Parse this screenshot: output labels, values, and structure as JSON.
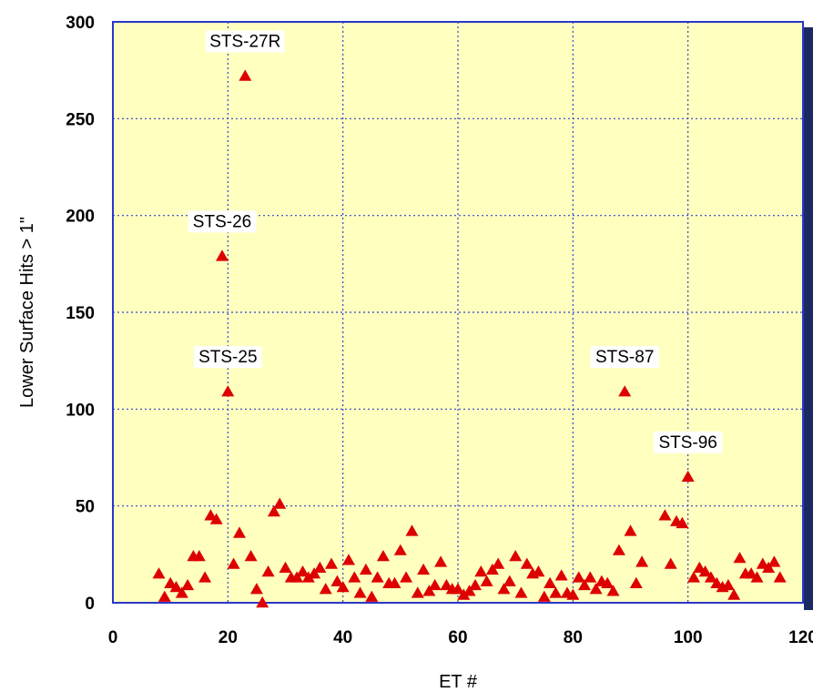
{
  "chart_data": {
    "type": "scatter",
    "xlabel": "ET #",
    "ylabel": "Lower Surface Hits > 1\"",
    "xlim": [
      0,
      120
    ],
    "ylim": [
      0,
      300
    ],
    "x_ticks": [
      "0",
      "20",
      "40",
      "60",
      "80",
      "100",
      "120"
    ],
    "y_ticks": [
      "0",
      "50",
      "100",
      "150",
      "200",
      "250",
      "300"
    ],
    "grid": true,
    "marker": "triangle",
    "colors": {
      "plot_background": "#ffffc0",
      "marker": "#dd0000",
      "grid": "#3344cc",
      "frame": "#2a38c8",
      "right_edge_strip": "#1b2a63"
    },
    "series": [
      {
        "points": [
          [
            8,
            15
          ],
          [
            9,
            3
          ],
          [
            10,
            10
          ],
          [
            11,
            8
          ],
          [
            12,
            5
          ],
          [
            13,
            9
          ],
          [
            14,
            24
          ],
          [
            15,
            24
          ],
          [
            16,
            13
          ],
          [
            17,
            45
          ],
          [
            18,
            43
          ],
          [
            19,
            179
          ],
          [
            20,
            109
          ],
          [
            21,
            20
          ],
          [
            22,
            36
          ],
          [
            23,
            272
          ],
          [
            24,
            24
          ],
          [
            25,
            7
          ],
          [
            26,
            0
          ],
          [
            27,
            16
          ],
          [
            28,
            47
          ],
          [
            29,
            51
          ],
          [
            30,
            18
          ],
          [
            31,
            13
          ],
          [
            32,
            13
          ],
          [
            33,
            16
          ],
          [
            34,
            13
          ],
          [
            35,
            15
          ],
          [
            36,
            18
          ],
          [
            37,
            7
          ],
          [
            38,
            20
          ],
          [
            39,
            11
          ],
          [
            40,
            8
          ],
          [
            41,
            22
          ],
          [
            42,
            13
          ],
          [
            43,
            5
          ],
          [
            44,
            17
          ],
          [
            45,
            3
          ],
          [
            46,
            13
          ],
          [
            47,
            24
          ],
          [
            48,
            10
          ],
          [
            49,
            10
          ],
          [
            50,
            27
          ],
          [
            51,
            13
          ],
          [
            52,
            37
          ],
          [
            53,
            5
          ],
          [
            54,
            17
          ],
          [
            55,
            6
          ],
          [
            56,
            9
          ],
          [
            57,
            21
          ],
          [
            58,
            9
          ],
          [
            59,
            7
          ],
          [
            60,
            7
          ],
          [
            61,
            4
          ],
          [
            62,
            6
          ],
          [
            63,
            9
          ],
          [
            64,
            16
          ],
          [
            65,
            11
          ],
          [
            66,
            17
          ],
          [
            67,
            20
          ],
          [
            68,
            7
          ],
          [
            69,
            11
          ],
          [
            70,
            24
          ],
          [
            71,
            5
          ],
          [
            72,
            20
          ],
          [
            73,
            15
          ],
          [
            74,
            16
          ],
          [
            75,
            3
          ],
          [
            76,
            10
          ],
          [
            77,
            5
          ],
          [
            78,
            14
          ],
          [
            79,
            5
          ],
          [
            80,
            4
          ],
          [
            81,
            13
          ],
          [
            82,
            9
          ],
          [
            83,
            13
          ],
          [
            84,
            7
          ],
          [
            85,
            11
          ],
          [
            86,
            10
          ],
          [
            87,
            6
          ],
          [
            88,
            27
          ],
          [
            89,
            109
          ],
          [
            90,
            37
          ],
          [
            91,
            10
          ],
          [
            92,
            21
          ],
          [
            96,
            45
          ],
          [
            97,
            20
          ],
          [
            98,
            42
          ],
          [
            99,
            41
          ],
          [
            100,
            65
          ],
          [
            101,
            13
          ],
          [
            102,
            18
          ],
          [
            103,
            16
          ],
          [
            104,
            13
          ],
          [
            105,
            10
          ],
          [
            106,
            8
          ],
          [
            107,
            9
          ],
          [
            108,
            4
          ],
          [
            109,
            23
          ],
          [
            110,
            15
          ],
          [
            111,
            15
          ],
          [
            112,
            13
          ],
          [
            113,
            20
          ],
          [
            114,
            18
          ],
          [
            115,
            21
          ],
          [
            116,
            13
          ]
        ]
      }
    ],
    "annotations": [
      {
        "text": "STS-27R",
        "x": 23,
        "y": 272
      },
      {
        "text": "STS-26",
        "x": 19,
        "y": 179
      },
      {
        "text": "STS-25",
        "x": 20,
        "y": 109
      },
      {
        "text": "STS-87",
        "x": 89,
        "y": 109
      },
      {
        "text": "STS-96",
        "x": 100,
        "y": 65
      }
    ]
  }
}
